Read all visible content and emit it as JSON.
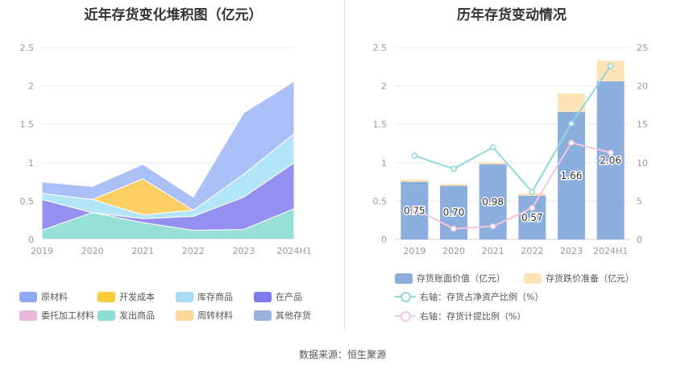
{
  "source_text": "数据来源：恒生聚源",
  "chart_data": [
    {
      "type": "area",
      "title": "近年存货变化堆积图（亿元）",
      "categories": [
        "2019",
        "2020",
        "2021",
        "2022",
        "2023",
        "2024H1"
      ],
      "ylim": [
        0,
        2.5
      ],
      "yticks": [
        "0",
        "0.5",
        "1",
        "1.5",
        "2",
        "2.5"
      ],
      "grid": true,
      "stacked": true,
      "series": [
        {
          "name": "发出商品",
          "color": "#8FDCD4",
          "values": [
            0.12,
            0.35,
            0.22,
            0.12,
            0.13,
            0.4
          ]
        },
        {
          "name": "其他存货",
          "color": "#A9BEE6",
          "values": [
            0.0,
            0.0,
            0.0,
            0.0,
            0.0,
            0.0
          ]
        },
        {
          "name": "在产品",
          "color": "#8B86F0",
          "values": [
            0.4,
            0.0,
            0.05,
            0.18,
            0.42,
            0.6
          ]
        },
        {
          "name": "库存商品",
          "color": "#ADE3F7",
          "values": [
            0.08,
            0.17,
            0.05,
            0.08,
            0.3,
            0.38
          ]
        },
        {
          "name": "开发成本",
          "color": "#FCCB58",
          "values": [
            0.0,
            0.0,
            0.47,
            0.0,
            0.0,
            0.0
          ]
        },
        {
          "name": "原材料",
          "color": "#A3BAF5",
          "values": [
            0.15,
            0.17,
            0.19,
            0.17,
            0.8,
            0.68
          ]
        },
        {
          "name": "委托加工材料",
          "color": "#E9B7D9",
          "values": [
            0.0,
            0.0,
            0.0,
            0.0,
            0.0,
            0.0
          ]
        },
        {
          "name": "周转材料",
          "color": "#FDD89A",
          "values": [
            0.0,
            0.0,
            0.0,
            0.0,
            0.0,
            0.02
          ]
        }
      ],
      "legend": {
        "placement": "bottom",
        "items": [
          {
            "name": "原材料",
            "color": "#8FA9F5"
          },
          {
            "name": "开发成本",
            "color": "#FCCB3A"
          },
          {
            "name": "库存商品",
            "color": "#A8DDF5"
          },
          {
            "name": "在产品",
            "color": "#7E7BEF"
          },
          {
            "name": "委托加工材料",
            "color": "#E9B7D9"
          },
          {
            "name": "发出商品",
            "color": "#8FDCD4"
          },
          {
            "name": "周转材料",
            "color": "#FDD89A"
          },
          {
            "name": "其他存货",
            "color": "#9AB0DD"
          }
        ]
      }
    },
    {
      "type": "bar",
      "title": "历年存货变动情况",
      "categories": [
        "2019",
        "2020",
        "2021",
        "2022",
        "2023",
        "2024H1"
      ],
      "ylim": [
        0,
        2.5
      ],
      "yticks": [
        "0",
        "0.5",
        "1",
        "1.5",
        "2",
        "2.5"
      ],
      "y2lim": [
        0,
        25
      ],
      "y2ticks": [
        "0",
        "5",
        "10",
        "15",
        "20",
        "25"
      ],
      "grid": true,
      "series": [
        {
          "name": "存货账面价值（亿元）",
          "color": "#8BAEDD",
          "values": [
            0.75,
            0.7,
            0.98,
            0.57,
            1.66,
            2.06
          ],
          "labels": [
            "0.75",
            "0.70",
            "0.98",
            "0.57",
            "1.66",
            "2.06"
          ]
        },
        {
          "name": "存货跌价准备（亿元）",
          "color": "#FDE3B6",
          "values": [
            0.03,
            0.02,
            0.02,
            0.03,
            0.24,
            0.27
          ]
        },
        {
          "name": "右轴：存货占净资产比例（%）",
          "color": "#8ED8DC",
          "axis": "right",
          "values": [
            10.9,
            9.2,
            12.0,
            6.2,
            15.1,
            22.6
          ]
        },
        {
          "name": "右轴：存货计提比例（%）",
          "color": "#F1C6DF",
          "axis": "right",
          "values": [
            4.0,
            1.4,
            1.7,
            4.1,
            12.6,
            11.3
          ]
        }
      ]
    }
  ]
}
